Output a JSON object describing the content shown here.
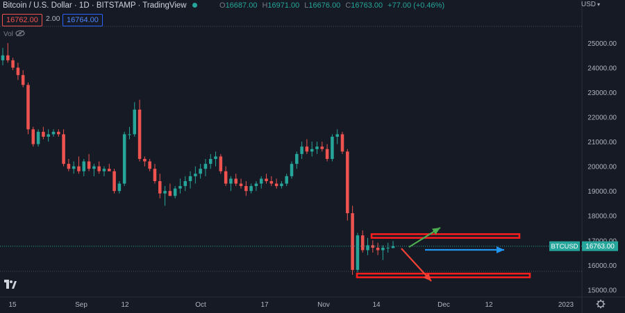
{
  "header": {
    "symbol_title": "Bitcoin / U.S. Dollar · 1D · BITSTAMP · TradingView",
    "ohlc": [
      {
        "label": "O",
        "value": "16687.00"
      },
      {
        "label": "H",
        "value": "16971.00"
      },
      {
        "label": "L",
        "value": "16676.00"
      },
      {
        "label": "C",
        "value": "16763.00"
      }
    ],
    "change": "+77.00 (+0.46%)",
    "currency": "USD"
  },
  "trade": {
    "sell": "16762.00",
    "spread": "2.00",
    "buy": "16764.00"
  },
  "indicator_label": "Vol",
  "price_tag": {
    "symbol": "BTCUSD",
    "price": "16763.00"
  },
  "colors": {
    "background": "#161a25",
    "up": "#26a69a",
    "down": "#ef5350",
    "zone": "#ff1e1e",
    "arrow_up": "#4caf50",
    "arrow_side": "#2196f3",
    "arrow_down": "#f44336"
  },
  "icons": [
    "eye-icon",
    "tradingview-logo-icon",
    "settings-gear-icon",
    "status-dot-icon",
    "chevron-down-icon"
  ],
  "chart_data": {
    "type": "candlestick",
    "ylim": [
      14700,
      25900
    ],
    "y_ticks": [
      "25000.00",
      "24000.00",
      "23000.00",
      "22000.00",
      "21000.00",
      "20000.00",
      "19000.00",
      "18000.00",
      "17000.00",
      "16000.00",
      "15000.00"
    ],
    "x_ticks": [
      "15",
      "Sep",
      "12",
      "Oct",
      "17",
      "Nov",
      "14",
      "Dec",
      "12",
      "2023"
    ],
    "candles": [
      [
        24300,
        24800,
        24100,
        24500
      ],
      [
        24500,
        25000,
        24200,
        24300
      ],
      [
        24300,
        24400,
        23900,
        24000
      ],
      [
        24000,
        24200,
        23500,
        23700
      ],
      [
        23700,
        23900,
        23200,
        23300
      ],
      [
        23300,
        23400,
        21300,
        21500
      ],
      [
        21500,
        21600,
        20800,
        20900
      ],
      [
        20900,
        21500,
        20800,
        21400
      ],
      [
        21400,
        21600,
        21100,
        21200
      ],
      [
        21200,
        21500,
        21000,
        21300
      ],
      [
        21300,
        21500,
        21200,
        21400
      ],
      [
        21400,
        21500,
        21200,
        21300
      ],
      [
        21300,
        21500,
        20000,
        20100
      ],
      [
        20100,
        20300,
        19800,
        19900
      ],
      [
        19900,
        20200,
        19700,
        20000
      ],
      [
        20000,
        20400,
        19700,
        19800
      ],
      [
        19800,
        20300,
        19600,
        20200
      ],
      [
        20200,
        20500,
        19800,
        19900
      ],
      [
        19900,
        20100,
        19600,
        20000
      ],
      [
        20000,
        20200,
        19700,
        19800
      ],
      [
        19800,
        20000,
        19600,
        19900
      ],
      [
        19900,
        20100,
        19800,
        19800
      ],
      [
        19800,
        19900,
        18900,
        19000
      ],
      [
        19000,
        19400,
        18900,
        19300
      ],
      [
        19300,
        21400,
        19200,
        21300
      ],
      [
        21300,
        21600,
        21100,
        21300
      ],
      [
        21300,
        22600,
        21200,
        22300
      ],
      [
        22300,
        22700,
        20200,
        20300
      ],
      [
        20300,
        20400,
        20000,
        20200
      ],
      [
        20200,
        20300,
        19800,
        19900
      ],
      [
        19900,
        20100,
        19300,
        19400
      ],
      [
        19400,
        19700,
        18700,
        18900
      ],
      [
        18900,
        19200,
        18400,
        19000
      ],
      [
        19000,
        19300,
        18800,
        18800
      ],
      [
        18800,
        19200,
        18700,
        19100
      ],
      [
        19100,
        19500,
        18900,
        19200
      ],
      [
        19200,
        19600,
        19000,
        19400
      ],
      [
        19400,
        19800,
        19100,
        19600
      ],
      [
        19600,
        20000,
        19300,
        19700
      ],
      [
        19700,
        20100,
        19500,
        19900
      ],
      [
        19900,
        20300,
        19600,
        20100
      ],
      [
        20100,
        20500,
        19900,
        20300
      ],
      [
        20300,
        20600,
        20000,
        20400
      ],
      [
        20400,
        20500,
        19700,
        19800
      ],
      [
        19800,
        20000,
        19200,
        19300
      ],
      [
        19300,
        19600,
        19000,
        19500
      ],
      [
        19500,
        19700,
        19200,
        19300
      ],
      [
        19300,
        19500,
        19100,
        19200
      ],
      [
        19200,
        19400,
        18800,
        19000
      ],
      [
        19000,
        19300,
        18900,
        19200
      ],
      [
        19200,
        19400,
        19000,
        19300
      ],
      [
        19300,
        19600,
        19100,
        19500
      ],
      [
        19500,
        19700,
        19300,
        19400
      ],
      [
        19400,
        19600,
        19200,
        19300
      ],
      [
        19300,
        19500,
        19100,
        19200
      ],
      [
        19200,
        19400,
        19100,
        19300
      ],
      [
        19300,
        19700,
        19200,
        19600
      ],
      [
        19600,
        20200,
        19500,
        20100
      ],
      [
        20100,
        20600,
        19900,
        20500
      ],
      [
        20500,
        21000,
        20300,
        20800
      ],
      [
        20800,
        21100,
        20500,
        20600
      ],
      [
        20600,
        21000,
        20400,
        20700
      ],
      [
        20700,
        21000,
        20500,
        20800
      ],
      [
        20800,
        21000,
        20600,
        20700
      ],
      [
        20700,
        20900,
        20200,
        20300
      ],
      [
        20300,
        21300,
        20200,
        21200
      ],
      [
        21200,
        21500,
        20900,
        21300
      ],
      [
        21300,
        21400,
        20500,
        20600
      ],
      [
        20600,
        20700,
        17800,
        18100
      ],
      [
        18100,
        18400,
        15600,
        15800
      ],
      [
        15800,
        17300,
        15700,
        17200
      ],
      [
        17200,
        17400,
        16500,
        16600
      ],
      [
        16600,
        17100,
        16400,
        16800
      ],
      [
        16800,
        17000,
        16500,
        16700
      ],
      [
        16700,
        16900,
        16400,
        16600
      ],
      [
        16600,
        16800,
        16200,
        16700
      ],
      [
        16700,
        16900,
        16500,
        16700
      ],
      [
        16687,
        16971,
        16676,
        16763
      ]
    ],
    "annotations": [
      {
        "type": "zone",
        "from": 17100,
        "to": 17250
      },
      {
        "type": "zone",
        "from": 15500,
        "to": 15650
      },
      {
        "type": "arrow",
        "direction": "up"
      },
      {
        "type": "arrow",
        "direction": "right"
      },
      {
        "type": "arrow",
        "direction": "down"
      }
    ],
    "last_price_line": 16763
  }
}
